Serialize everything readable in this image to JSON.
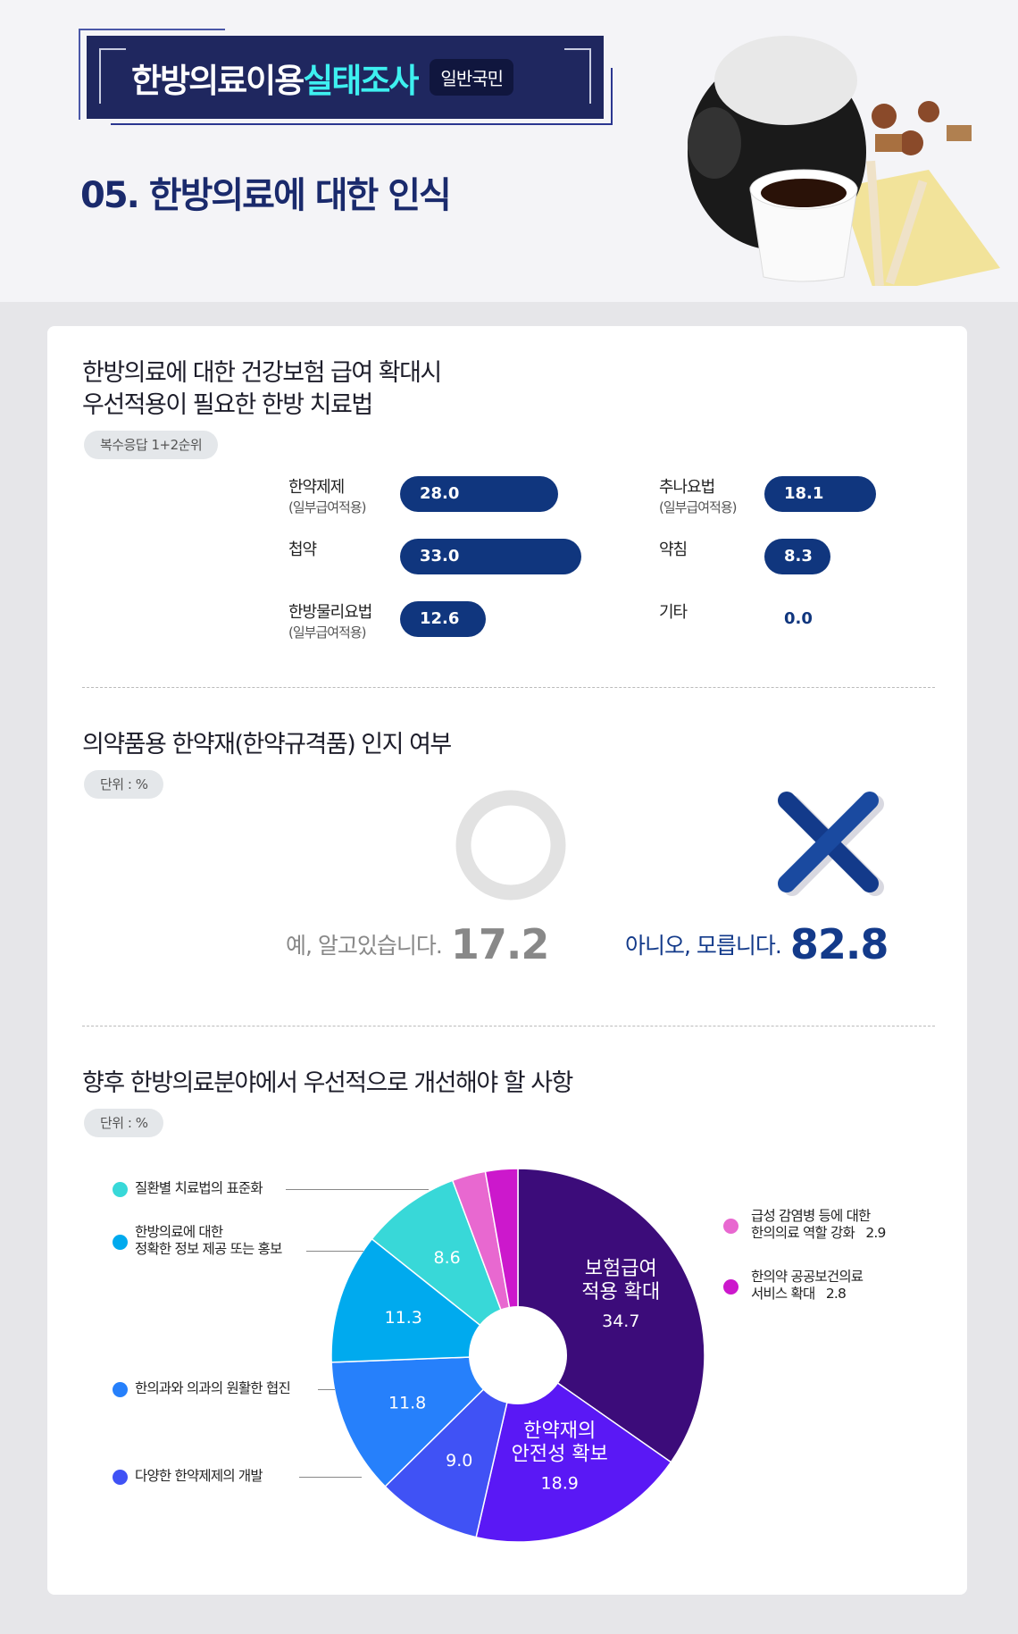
{
  "header": {
    "banner_title_a": "한방의료이용",
    "banner_title_b": "실태조사",
    "banner_badge": "일반국민",
    "section_title": "05. 한방의료에 대한 인식"
  },
  "section1": {
    "title_line1": "한방의료에 대한 건강보험 급여 확대시",
    "title_line2": "우선적용이 필요한 한방 치료법",
    "pill": "복수응답 1+2순위",
    "items": [
      {
        "label": "한약제제",
        "sub": "(일부급여적용)",
        "value": "28.0",
        "num": 28.0
      },
      {
        "label": "첩약",
        "sub": "",
        "value": "33.0",
        "num": 33.0
      },
      {
        "label": "한방물리요법",
        "sub": "(일부급여적용)",
        "value": "12.6",
        "num": 12.6
      },
      {
        "label": "추나요법",
        "sub": "(일부급여적용)",
        "value": "18.1",
        "num": 18.1
      },
      {
        "label": "약침",
        "sub": "",
        "value": "8.3",
        "num": 8.3
      },
      {
        "label": "기타",
        "sub": "",
        "value": "0.0",
        "num": 0.0
      }
    ],
    "bar_color": "#10367e"
  },
  "section2": {
    "title": "의약품용 한약재(한약규격품) 인지 여부",
    "pill": "단위 : %",
    "yes": {
      "label": "예, 알고있습니다.",
      "value": "17.2",
      "icon": "circle-o-icon",
      "color": "#888888"
    },
    "no": {
      "label": "아니오, 모릅니다.",
      "value": "82.8",
      "icon": "x-icon",
      "color": "#133a8a"
    }
  },
  "section3": {
    "title": "향후 한방의료분야에서 우선적으로 개선해야 할 사항",
    "pill": "단위 : %"
  },
  "chart_data": {
    "type": "pie",
    "donut": true,
    "start": "top",
    "direction": "clockwise",
    "slices": [
      {
        "label": "보험급여 적용 확대",
        "value": 34.7,
        "color": "#3c0c7a",
        "inside_l1": "보험급여",
        "inside_l2": "적용 확대",
        "text": "34.7"
      },
      {
        "label": "한약재의 안전성 확보",
        "value": 18.9,
        "color": "#5a18f5",
        "inside_l1": "한약재의",
        "inside_l2": "안전성 확보",
        "text": "18.9"
      },
      {
        "label": "다양한 한약제제의 개발",
        "value": 9.0,
        "color": "#4052f5",
        "text": "9.0"
      },
      {
        "label": "한의과와 의과의 원활한 협진",
        "value": 11.8,
        "color": "#2680fb",
        "text": "11.8"
      },
      {
        "label": "한방의료에 대한 정확한 정보 제공 또는 홍보",
        "l1": "한방의료에 대한",
        "l2": "정확한 정보 제공 또는 홍보",
        "value": 11.3,
        "color": "#00aaee",
        "text": "11.3"
      },
      {
        "label": "질환별 치료법의 표준화",
        "value": 8.6,
        "color": "#38d8d8",
        "text": "8.6"
      },
      {
        "label": "급성 감염병 등에 대한 한의의료 역할 강화",
        "l1": "급성 감염병 등에 대한",
        "l2": "한의의료 역할 강화",
        "value": 2.9,
        "color": "#e868d0",
        "text": "2.9"
      },
      {
        "label": "한의약 공공보건의료 서비스 확대",
        "l1": "한의약 공공보건의료",
        "l2": "서비스 확대",
        "value": 2.8,
        "color": "#cc18cc",
        "text": "2.8"
      }
    ]
  }
}
